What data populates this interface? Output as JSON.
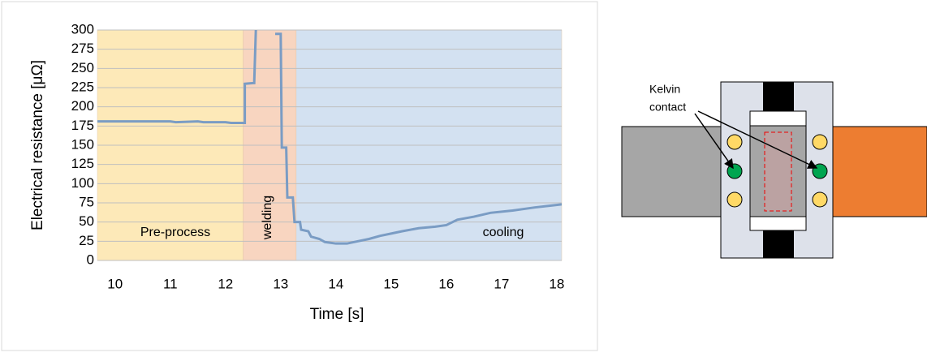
{
  "chart_data": {
    "type": "line",
    "xlabel": "Time [s]",
    "ylabel": "Electrical resistance [μΩ]",
    "xlim": [
      9.68,
      18.09
    ],
    "xticks": [
      10,
      11,
      12,
      13,
      14,
      15,
      16,
      17,
      18
    ],
    "ylim": [
      0,
      300
    ],
    "yticks": [
      0,
      25,
      50,
      75,
      100,
      125,
      150,
      175,
      200,
      225,
      250,
      275,
      300
    ],
    "grid": true,
    "regions": [
      {
        "label": "Pre-process",
        "from": 9.68,
        "to": 12.32,
        "color": "#fde9b8"
      },
      {
        "label": "welding",
        "from": 12.32,
        "to": 13.28,
        "color": "#f8d5c0"
      },
      {
        "label": "cooling",
        "from": 13.28,
        "to": 18.09,
        "color": "#d3e1f1"
      }
    ],
    "series": [
      {
        "color": "#7a9cc4",
        "x": [
          9.68,
          11,
          11.1,
          11.5,
          11.6,
          12,
          12.1,
          12.35,
          12.35,
          12.5,
          12.52,
          12.55,
          12.9,
          12.9,
          13.0,
          13.02,
          13.1,
          13.12,
          13.22,
          13.25,
          13.35,
          13.37,
          13.5,
          13.55,
          13.7,
          13.8,
          14.0,
          14.2,
          14.4,
          14.6,
          14.8,
          15,
          15.2,
          15.5,
          15.8,
          16,
          16.2,
          16.5,
          16.8,
          17.2,
          17.6,
          18.09
        ],
        "values": [
          181,
          181,
          180,
          181,
          180,
          180,
          179,
          179,
          230,
          231,
          231,
          300,
          null,
          295,
          295,
          147,
          147,
          82,
          82,
          50,
          50,
          40,
          38,
          31,
          28,
          24,
          22,
          22,
          25,
          28,
          32,
          35,
          38,
          42,
          44,
          46,
          53,
          57,
          62,
          65,
          69,
          73
        ]
      }
    ]
  },
  "diagram": {
    "label_lines": [
      "Kelvin",
      "contact"
    ]
  }
}
